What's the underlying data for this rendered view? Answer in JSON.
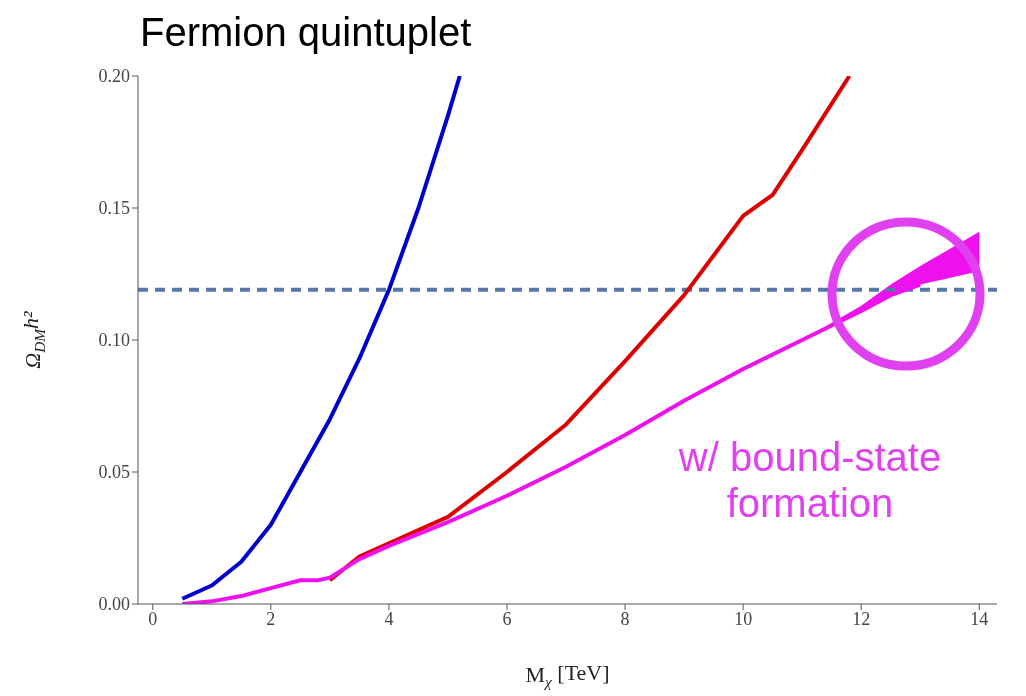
{
  "chart_data": {
    "type": "line",
    "title": "Fermion quintuplet",
    "xlabel": "M$_{χ}$ [TeV]",
    "ylabel": "Ω$_{DM}$h²",
    "xlim": [
      -0.25,
      14.3
    ],
    "xticks": [
      0,
      2,
      4,
      6,
      8,
      10,
      12,
      14
    ],
    "ylim": [
      0,
      0.2
    ],
    "yticks": [
      {
        "value": 0,
        "label": "0.00"
      },
      {
        "value": 0.05,
        "label": "0.05"
      },
      {
        "value": 0.1,
        "label": "0.10"
      },
      {
        "value": 0.15,
        "label": "0.15"
      },
      {
        "value": 0.2,
        "label": "0.20"
      }
    ],
    "grid": false,
    "legend": false,
    "line_style": "solid",
    "marker": "none",
    "series": [
      {
        "color": "#0000cc",
        "x": [
          0.5,
          1,
          1.5,
          2,
          2.5,
          3,
          3.5,
          4,
          4.5,
          5,
          5.2
        ],
        "values": [
          0.002,
          0.007,
          0.016,
          0.03,
          0.05,
          0.07,
          0.093,
          0.119,
          0.15,
          0.185,
          0.2
        ]
      },
      {
        "color": "#dd0000",
        "x": [
          3,
          3.5,
          4,
          5,
          6,
          7,
          8,
          9,
          10,
          10.5,
          11,
          11.8
        ],
        "values": [
          0.009,
          0.018,
          0.023,
          0.033,
          0.05,
          0.068,
          0.092,
          0.117,
          0.147,
          0.155,
          0.172,
          0.2
        ]
      },
      {
        "color": "#ee11ee",
        "x": [
          0.5,
          1,
          1.5,
          2,
          2.5,
          2.8,
          3,
          3.5,
          4,
          5,
          6,
          7,
          8,
          9,
          10,
          11,
          12,
          12.5,
          13,
          14
        ],
        "values": [
          0,
          0.001,
          0.003,
          0.006,
          0.009,
          0.009,
          0.01,
          0.017,
          0.022,
          0.031,
          0.041,
          0.052,
          0.064,
          0.077,
          0.089,
          0.1,
          0.111,
          0.117,
          0.121,
          null
        ],
        "lower": [
          null,
          null,
          null,
          null,
          null,
          null,
          null,
          null,
          null,
          null,
          null,
          null,
          null,
          null,
          null,
          0.1,
          0.111,
          0.117,
          0.121,
          0.126
        ],
        "upper": [
          null,
          null,
          null,
          null,
          null,
          null,
          null,
          null,
          null,
          null,
          null,
          null,
          null,
          null,
          null,
          0.1,
          0.113,
          0.121,
          0.128,
          0.141
        ]
      }
    ],
    "ref_lines": [
      {
        "axis": "y",
        "value": 0.119,
        "color": "#5577aa",
        "line_style": "dashed"
      }
    ],
    "annotations": [
      "w/ bound-state formation"
    ]
  }
}
